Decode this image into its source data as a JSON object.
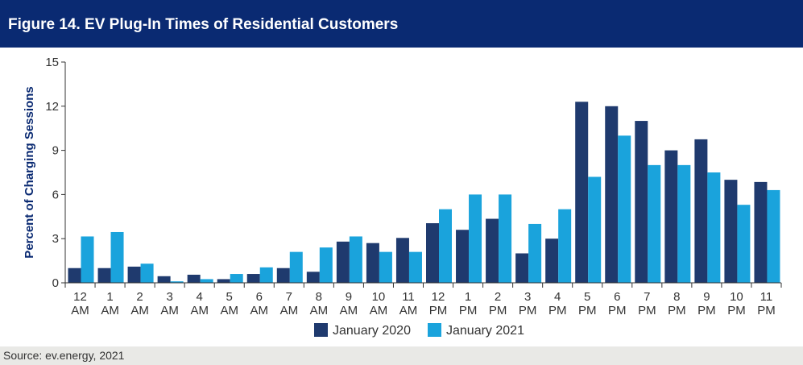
{
  "header": {
    "title": "Figure 14. EV Plug-In Times of Residential Customers"
  },
  "footer": {
    "source": "Source: ev.energy, 2021"
  },
  "colors": {
    "title_bg": "#0a2a72",
    "series_2020": "#1f3a6e",
    "series_2021": "#1aa3dc",
    "axis": "#333333"
  },
  "chart_data": {
    "type": "bar",
    "ylabel": "Percent of Charging Sessions",
    "xlabel": "",
    "ylim": [
      0,
      15
    ],
    "yticks": [
      0,
      3,
      6,
      9,
      12,
      15
    ],
    "grid": false,
    "legend_position": "bottom-center",
    "categories": [
      [
        "12",
        "AM"
      ],
      [
        "1",
        "AM"
      ],
      [
        "2",
        "AM"
      ],
      [
        "3",
        "AM"
      ],
      [
        "4",
        "AM"
      ],
      [
        "5",
        "AM"
      ],
      [
        "6",
        "AM"
      ],
      [
        "7",
        "AM"
      ],
      [
        "8",
        "AM"
      ],
      [
        "9",
        "AM"
      ],
      [
        "10",
        "AM"
      ],
      [
        "11",
        "AM"
      ],
      [
        "12",
        "PM"
      ],
      [
        "1",
        "PM"
      ],
      [
        "2",
        "PM"
      ],
      [
        "3",
        "PM"
      ],
      [
        "4",
        "PM"
      ],
      [
        "5",
        "PM"
      ],
      [
        "6",
        "PM"
      ],
      [
        "7",
        "PM"
      ],
      [
        "8",
        "PM"
      ],
      [
        "9",
        "PM"
      ],
      [
        "10",
        "PM"
      ],
      [
        "11",
        "PM"
      ]
    ],
    "series": [
      {
        "name": "January 2020",
        "color": "#1f3a6e",
        "values": [
          1.0,
          1.0,
          1.1,
          0.45,
          0.55,
          0.25,
          0.6,
          1.0,
          0.75,
          2.8,
          2.7,
          3.05,
          4.05,
          3.6,
          4.35,
          2.0,
          3.0,
          12.3,
          12.0,
          11.0,
          9.0,
          9.75,
          7.0,
          6.85
        ]
      },
      {
        "name": "January 2021",
        "color": "#1aa3dc",
        "values": [
          3.15,
          3.45,
          1.3,
          0.1,
          0.25,
          0.6,
          1.05,
          2.1,
          2.4,
          3.15,
          2.1,
          2.1,
          5.0,
          6.0,
          6.0,
          4.0,
          5.0,
          7.2,
          10.0,
          8.0,
          8.0,
          7.5,
          5.3,
          6.3
        ]
      }
    ]
  }
}
